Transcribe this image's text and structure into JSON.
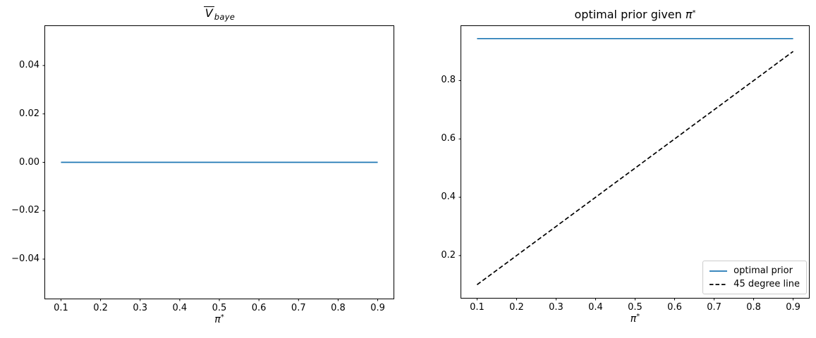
{
  "chart_data": [
    {
      "type": "line",
      "title": {
        "base": "V",
        "sub": "baye",
        "overline": true
      },
      "xlabel": {
        "base": "π",
        "sup": "*"
      },
      "xlim": [
        0.06,
        0.94
      ],
      "ylim": [
        -0.0563,
        0.0563
      ],
      "grid": false,
      "xticks": {
        "values": [
          0.1,
          0.2,
          0.3,
          0.4,
          0.5,
          0.6,
          0.7,
          0.8,
          0.9
        ],
        "labels": [
          "0.1",
          "0.2",
          "0.3",
          "0.4",
          "0.5",
          "0.6",
          "0.7",
          "0.8",
          "0.9"
        ]
      },
      "yticks": {
        "values": [
          -0.04,
          -0.02,
          0,
          0.02,
          0.04
        ],
        "labels": [
          "−0.04",
          "−0.02",
          "0.00",
          "0.02",
          "0.04"
        ]
      },
      "series": [
        {
          "name": "V_baye",
          "color": "#1f77b4",
          "dash": "solid",
          "x": [
            0.1,
            0.9
          ],
          "y": [
            0.0,
            0.0
          ]
        }
      ],
      "legend": null
    },
    {
      "type": "line",
      "title": {
        "prefix": "optimal prior given ",
        "base": "π",
        "sup": "*"
      },
      "xlabel": {
        "base": "π",
        "sup": "*"
      },
      "xlim": [
        0.06,
        0.94
      ],
      "ylim": [
        0.055,
        0.987
      ],
      "grid": false,
      "xticks": {
        "values": [
          0.1,
          0.2,
          0.3,
          0.4,
          0.5,
          0.6,
          0.7,
          0.8,
          0.9
        ],
        "labels": [
          "0.1",
          "0.2",
          "0.3",
          "0.4",
          "0.5",
          "0.6",
          "0.7",
          "0.8",
          "0.9"
        ]
      },
      "yticks": {
        "values": [
          0.2,
          0.4,
          0.6,
          0.8
        ],
        "labels": [
          "0.2",
          "0.4",
          "0.6",
          "0.8"
        ]
      },
      "series": [
        {
          "name": "optimal prior",
          "color": "#1f77b4",
          "dash": "solid",
          "x": [
            0.1,
            0.9
          ],
          "y": [
            0.944,
            0.944
          ]
        },
        {
          "name": "45 degree line",
          "color": "#000000",
          "dash": "dashed",
          "x": [
            0.1,
            0.9
          ],
          "y": [
            0.1,
            0.9
          ]
        }
      ],
      "legend": {
        "position": "lower right",
        "entries": [
          {
            "label": "optimal prior",
            "color": "#1f77b4",
            "dash": "solid"
          },
          {
            "label": "45 degree line",
            "color": "#000000",
            "dash": "dashed"
          }
        ]
      }
    }
  ]
}
